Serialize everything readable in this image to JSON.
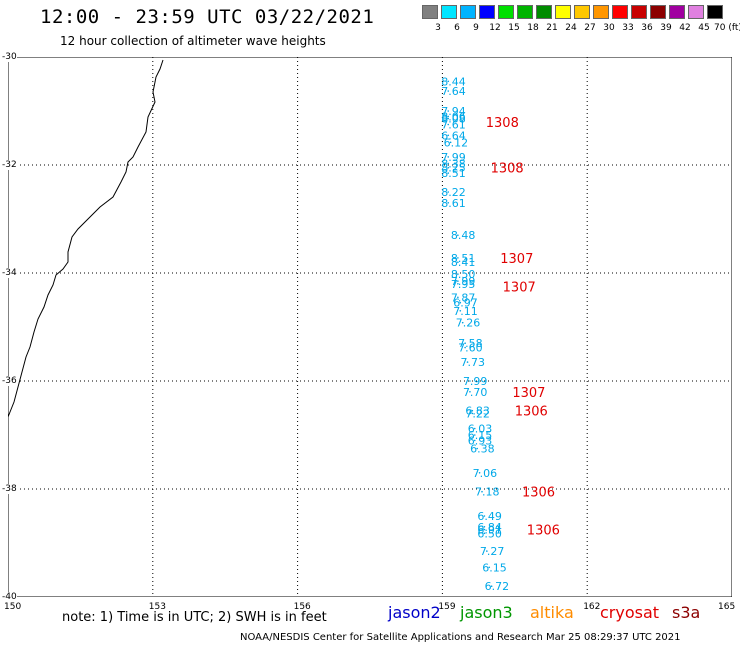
{
  "header": {
    "title": "12:00 - 23:59 UTC 03/22/2021",
    "subtitle": "12 hour collection of altimeter wave heights"
  },
  "colorbar": {
    "labels": [
      "3",
      "6",
      "9",
      "12",
      "15",
      "18",
      "21",
      "24",
      "27",
      "30",
      "33",
      "36",
      "39",
      "42",
      "45",
      "70 (ft)"
    ],
    "colors": [
      "#808080",
      "#00e5ff",
      "#00b4ff",
      "#0000ff",
      "#00e000",
      "#00b400",
      "#008c00",
      "#ffff00",
      "#ffc800",
      "#ff9600",
      "#ff0000",
      "#c80000",
      "#8c0000",
      "#a000a0",
      "#e080e0",
      "#000000"
    ]
  },
  "map": {
    "lon_labels": [
      "150",
      "153",
      "156",
      "159",
      "162",
      "165"
    ],
    "lat_labels": [
      "-30",
      "-32",
      "-34",
      "-36",
      "-38",
      "-40"
    ],
    "wave_labels": [
      {
        "lat": -30.45,
        "lon": 159.1,
        "text": "8.44"
      },
      {
        "lat": -30.63,
        "lon": 159.1,
        "text": "7.64"
      },
      {
        "lat": -31.0,
        "lon": 159.1,
        "text": "7.94"
      },
      {
        "lat": -31.1,
        "lon": 159.1,
        "text": "8.06"
      },
      {
        "lat": -31.14,
        "lon": 159.1,
        "text": "8.08"
      },
      {
        "lat": -31.25,
        "lon": 159.1,
        "text": "7.61"
      },
      {
        "lat": -31.45,
        "lon": 159.1,
        "text": "6.64"
      },
      {
        "lat": -31.58,
        "lon": 159.15,
        "text": "6.12"
      },
      {
        "lat": -31.85,
        "lon": 159.1,
        "text": "7.99"
      },
      {
        "lat": -31.97,
        "lon": 159.1,
        "text": "8.38"
      },
      {
        "lat": -32.05,
        "lon": 159.1,
        "text": "8.25"
      },
      {
        "lat": -32.15,
        "lon": 159.1,
        "text": "8.51"
      },
      {
        "lat": -32.5,
        "lon": 159.1,
        "text": "8.22"
      },
      {
        "lat": -32.7,
        "lon": 159.1,
        "text": "8.61"
      },
      {
        "lat": -33.3,
        "lon": 159.3,
        "text": "8.48"
      },
      {
        "lat": -33.72,
        "lon": 159.3,
        "text": "8.51"
      },
      {
        "lat": -33.8,
        "lon": 159.3,
        "text": "8.41"
      },
      {
        "lat": -34.02,
        "lon": 159.3,
        "text": "8.50"
      },
      {
        "lat": -34.15,
        "lon": 159.3,
        "text": "7.99"
      },
      {
        "lat": -34.2,
        "lon": 159.3,
        "text": "7.95"
      },
      {
        "lat": -34.45,
        "lon": 159.3,
        "text": "7.87"
      },
      {
        "lat": -34.55,
        "lon": 159.35,
        "text": "6.97"
      },
      {
        "lat": -34.7,
        "lon": 159.35,
        "text": "7.11"
      },
      {
        "lat": -34.92,
        "lon": 159.4,
        "text": "7.26"
      },
      {
        "lat": -35.3,
        "lon": 159.45,
        "text": "7.58"
      },
      {
        "lat": -35.38,
        "lon": 159.45,
        "text": "7.60"
      },
      {
        "lat": -35.65,
        "lon": 159.5,
        "text": "7.73"
      },
      {
        "lat": -36.0,
        "lon": 159.55,
        "text": "7.99"
      },
      {
        "lat": -36.2,
        "lon": 159.55,
        "text": "7.70"
      },
      {
        "lat": -36.55,
        "lon": 159.6,
        "text": "6.83"
      },
      {
        "lat": -36.6,
        "lon": 159.6,
        "text": "7.22"
      },
      {
        "lat": -36.88,
        "lon": 159.65,
        "text": "6.03"
      },
      {
        "lat": -37.0,
        "lon": 159.65,
        "text": "6.15"
      },
      {
        "lat": -37.1,
        "lon": 159.65,
        "text": "6.93"
      },
      {
        "lat": -37.25,
        "lon": 159.7,
        "text": "6.38"
      },
      {
        "lat": -37.7,
        "lon": 159.75,
        "text": "7.06"
      },
      {
        "lat": -38.05,
        "lon": 159.8,
        "text": "7.18"
      },
      {
        "lat": -38.5,
        "lon": 159.85,
        "text": "6.49"
      },
      {
        "lat": -38.7,
        "lon": 159.85,
        "text": "6.84"
      },
      {
        "lat": -38.75,
        "lon": 159.85,
        "text": "6.91"
      },
      {
        "lat": -38.82,
        "lon": 159.85,
        "text": "6.50"
      },
      {
        "lat": -39.15,
        "lon": 159.9,
        "text": "7.27"
      },
      {
        "lat": -39.45,
        "lon": 159.95,
        "text": "6.15"
      },
      {
        "lat": -39.8,
        "lon": 160.0,
        "text": "6.72"
      }
    ],
    "time_labels": [
      {
        "lat": -31.2,
        "lon": 159.65,
        "text": "1308"
      },
      {
        "lat": -32.05,
        "lon": 159.75,
        "text": "1308"
      },
      {
        "lat": -33.72,
        "lon": 159.95,
        "text": "1307"
      },
      {
        "lat": -34.25,
        "lon": 160.0,
        "text": "1307"
      },
      {
        "lat": -36.2,
        "lon": 160.2,
        "text": "1307"
      },
      {
        "lat": -36.55,
        "lon": 160.25,
        "text": "1306"
      },
      {
        "lat": -38.05,
        "lon": 160.4,
        "text": "1306"
      },
      {
        "lat": -38.75,
        "lon": 160.5,
        "text": "1306"
      }
    ]
  },
  "note": "note: 1) Time is in UTC; 2) SWH is in feet",
  "satellites": [
    {
      "name": "jason2",
      "color": "#0000c8"
    },
    {
      "name": "jason3",
      "color": "#009600"
    },
    {
      "name": "altika",
      "color": "#ff8c00"
    },
    {
      "name": "cryosat",
      "color": "#e00000"
    },
    {
      "name": "s3a",
      "color": "#8c0000"
    }
  ],
  "footer": "NOAA/NESDIS Center for Satellite Applications and Research    Mar 25 08:29:37 UTC 2021"
}
